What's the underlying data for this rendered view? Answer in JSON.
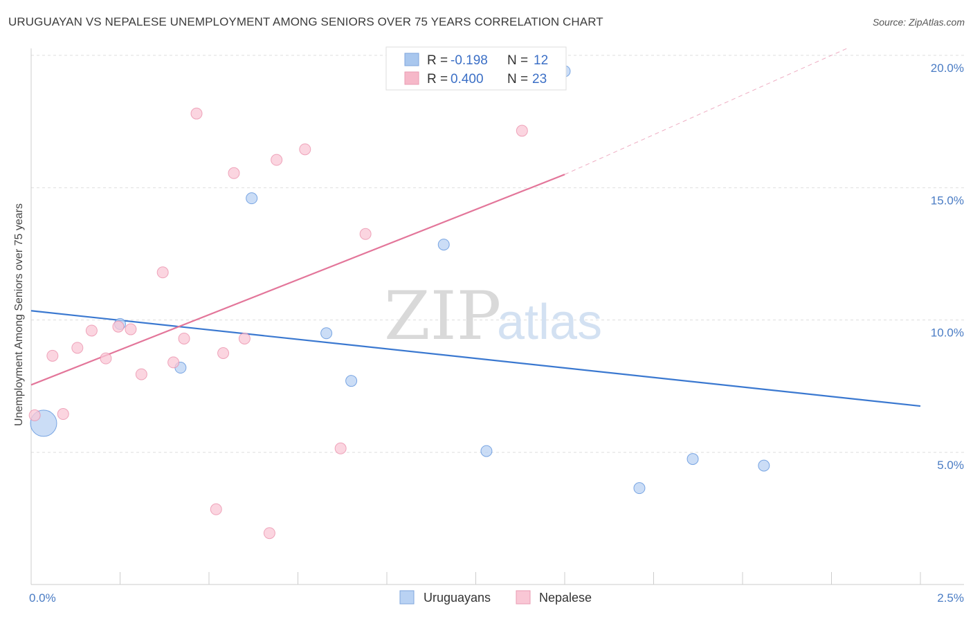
{
  "title": "URUGUAYAN VS NEPALESE UNEMPLOYMENT AMONG SENIORS OVER 75 YEARS CORRELATION CHART",
  "source": "Source: ZipAtlas.com",
  "watermark": {
    "zip": "ZIP",
    "atlas": "atlas"
  },
  "legend_top": [
    {
      "r_label": "R = ",
      "r_value": "-0.198",
      "n_label": "N = ",
      "n_value": "12",
      "color": "#a9c7ee"
    },
    {
      "r_label": "R = ",
      "r_value": "0.400",
      "n_label": "N = ",
      "n_value": "23",
      "color": "#f6b8c9"
    }
  ],
  "legend_bottom": [
    {
      "label": "Uruguayans",
      "color": "#b9d2f3"
    },
    {
      "label": "Nepalese",
      "color": "#f9c7d5"
    }
  ],
  "chart_data": {
    "type": "scatter",
    "title": "URUGUAYAN VS NEPALESE UNEMPLOYMENT AMONG SENIORS OVER 75 YEARS CORRELATION CHART",
    "xlabel": "",
    "ylabel": "Unemployment Among Seniors over 75 years",
    "xlim": [
      0,
      2.5
    ],
    "ylim": [
      0,
      20.5
    ],
    "x_ticks": [
      {
        "value": 0,
        "label": "0.0%"
      },
      {
        "value": 2.5,
        "label": "2.5%"
      }
    ],
    "y_ticks": [
      {
        "value": 5,
        "label": "5.0%"
      },
      {
        "value": 10,
        "label": "10.0%"
      },
      {
        "value": 15,
        "label": "15.0%"
      },
      {
        "value": 20,
        "label": "20.0%"
      }
    ],
    "grid": true,
    "legend_position": "top-center",
    "series": [
      {
        "name": "Uruguayans",
        "color": "#4a86d8",
        "fill": "#b9d2f3",
        "points": [
          {
            "x": 0.035,
            "y": 6.1,
            "size": "large"
          },
          {
            "x": 0.25,
            "y": 9.85
          },
          {
            "x": 0.42,
            "y": 8.2
          },
          {
            "x": 0.62,
            "y": 14.6
          },
          {
            "x": 0.83,
            "y": 9.5
          },
          {
            "x": 0.9,
            "y": 7.7
          },
          {
            "x": 1.16,
            "y": 12.85
          },
          {
            "x": 1.28,
            "y": 5.05
          },
          {
            "x": 1.5,
            "y": 19.4
          },
          {
            "x": 1.71,
            "y": 3.65
          },
          {
            "x": 1.86,
            "y": 4.75
          },
          {
            "x": 2.06,
            "y": 4.5
          }
        ],
        "trend": {
          "x": [
            0,
            2.5
          ],
          "y": [
            10.35,
            6.75
          ],
          "color": "#3a78d0"
        }
      },
      {
        "name": "Nepalese",
        "color": "#e885a3",
        "fill": "#f9c7d5",
        "points": [
          {
            "x": 0.01,
            "y": 6.4
          },
          {
            "x": 0.06,
            "y": 8.65
          },
          {
            "x": 0.09,
            "y": 6.45
          },
          {
            "x": 0.13,
            "y": 8.95
          },
          {
            "x": 0.17,
            "y": 9.6
          },
          {
            "x": 0.21,
            "y": 8.55
          },
          {
            "x": 0.245,
            "y": 9.75
          },
          {
            "x": 0.28,
            "y": 9.65
          },
          {
            "x": 0.31,
            "y": 7.95
          },
          {
            "x": 0.37,
            "y": 11.8
          },
          {
            "x": 0.4,
            "y": 8.4
          },
          {
            "x": 0.43,
            "y": 9.3
          },
          {
            "x": 0.465,
            "y": 17.8
          },
          {
            "x": 0.52,
            "y": 2.85
          },
          {
            "x": 0.54,
            "y": 8.75
          },
          {
            "x": 0.57,
            "y": 15.55
          },
          {
            "x": 0.6,
            "y": 9.3
          },
          {
            "x": 0.67,
            "y": 1.95
          },
          {
            "x": 0.69,
            "y": 16.05
          },
          {
            "x": 0.77,
            "y": 16.45
          },
          {
            "x": 0.87,
            "y": 5.15
          },
          {
            "x": 0.94,
            "y": 13.25
          },
          {
            "x": 1.38,
            "y": 17.15
          }
        ],
        "trend": {
          "x": [
            0,
            1.5
          ],
          "y": [
            7.55,
            15.5
          ],
          "dashed_to": {
            "x": 2.3,
            "y": 20.3
          },
          "color": "#e3769a"
        }
      }
    ]
  }
}
